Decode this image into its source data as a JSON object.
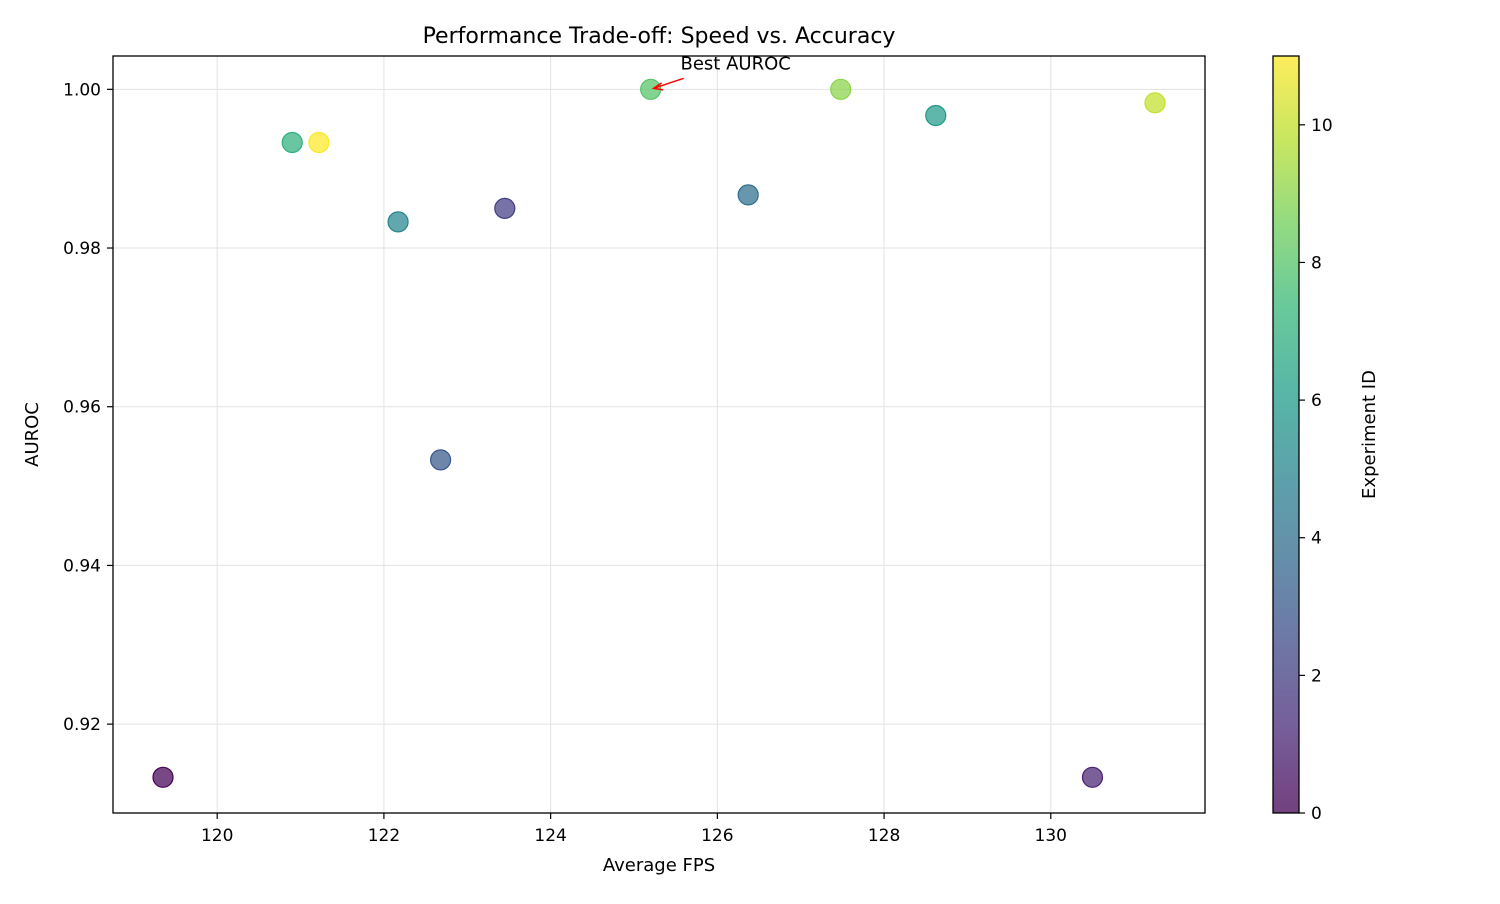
{
  "chart_data": {
    "type": "scatter",
    "title": "Performance Trade-off: Speed vs. Accuracy",
    "xlabel": "Average FPS",
    "ylabel": "AUROC",
    "xlim": [
      118.75,
      131.85
    ],
    "ylim": [
      0.9088,
      1.0042
    ],
    "xticks": [
      120,
      122,
      124,
      126,
      128,
      130
    ],
    "yticks": [
      0.92,
      0.94,
      0.96,
      0.98,
      1.0
    ],
    "grid": true,
    "colormap": "viridis",
    "colorbar": {
      "label": "Experiment ID",
      "range": [
        0,
        11
      ],
      "ticks": [
        0,
        2,
        4,
        6,
        8,
        10
      ]
    },
    "points": [
      {
        "id": 0,
        "x": 119.35,
        "y": 0.9133
      },
      {
        "id": 1,
        "x": 130.5,
        "y": 0.9133
      },
      {
        "id": 2,
        "x": 123.45,
        "y": 0.985
      },
      {
        "id": 3,
        "x": 122.68,
        "y": 0.9533
      },
      {
        "id": 4,
        "x": 126.37,
        "y": 0.9867
      },
      {
        "id": 5,
        "x": 122.17,
        "y": 0.9833
      },
      {
        "id": 6,
        "x": 128.62,
        "y": 0.9967
      },
      {
        "id": 7,
        "x": 120.9,
        "y": 0.9933
      },
      {
        "id": 8,
        "x": 125.2,
        "y": 1.0
      },
      {
        "id": 9,
        "x": 127.48,
        "y": 1.0
      },
      {
        "id": 10,
        "x": 131.25,
        "y": 0.9983
      },
      {
        "id": 11,
        "x": 121.22,
        "y": 0.9933
      }
    ],
    "annotations": [
      {
        "text": "Best AUROC",
        "target_x": 125.2,
        "target_y": 1.0,
        "arrow_color": "#ff0000"
      }
    ]
  }
}
